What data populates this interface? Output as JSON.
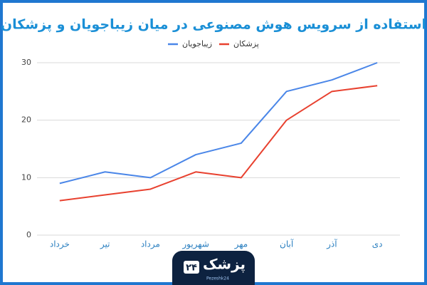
{
  "chart_data": {
    "type": "line",
    "title": "استفاده از سرویس هوش مصنوعی در میان زیباجویان و پزشکان",
    "categories": [
      "خرداد",
      "تیر",
      "مرداد",
      "شهریور",
      "مهر",
      "آبان",
      "آذر",
      "دی"
    ],
    "series": [
      {
        "name": "زیباجویان",
        "color": "#4a86e8",
        "values": [
          9,
          11,
          10,
          14,
          16,
          25,
          27,
          30
        ]
      },
      {
        "name": "پزشکان",
        "color": "#e8412f",
        "values": [
          6,
          7,
          8,
          11,
          10,
          20,
          25,
          26
        ]
      }
    ],
    "ylim": [
      0,
      30
    ],
    "yticks": [
      0,
      10,
      20,
      30
    ],
    "grid": true,
    "legend": "top"
  },
  "logo": {
    "name": "پزشک",
    "number": "۲۴",
    "latin": "Pezeshk24"
  }
}
